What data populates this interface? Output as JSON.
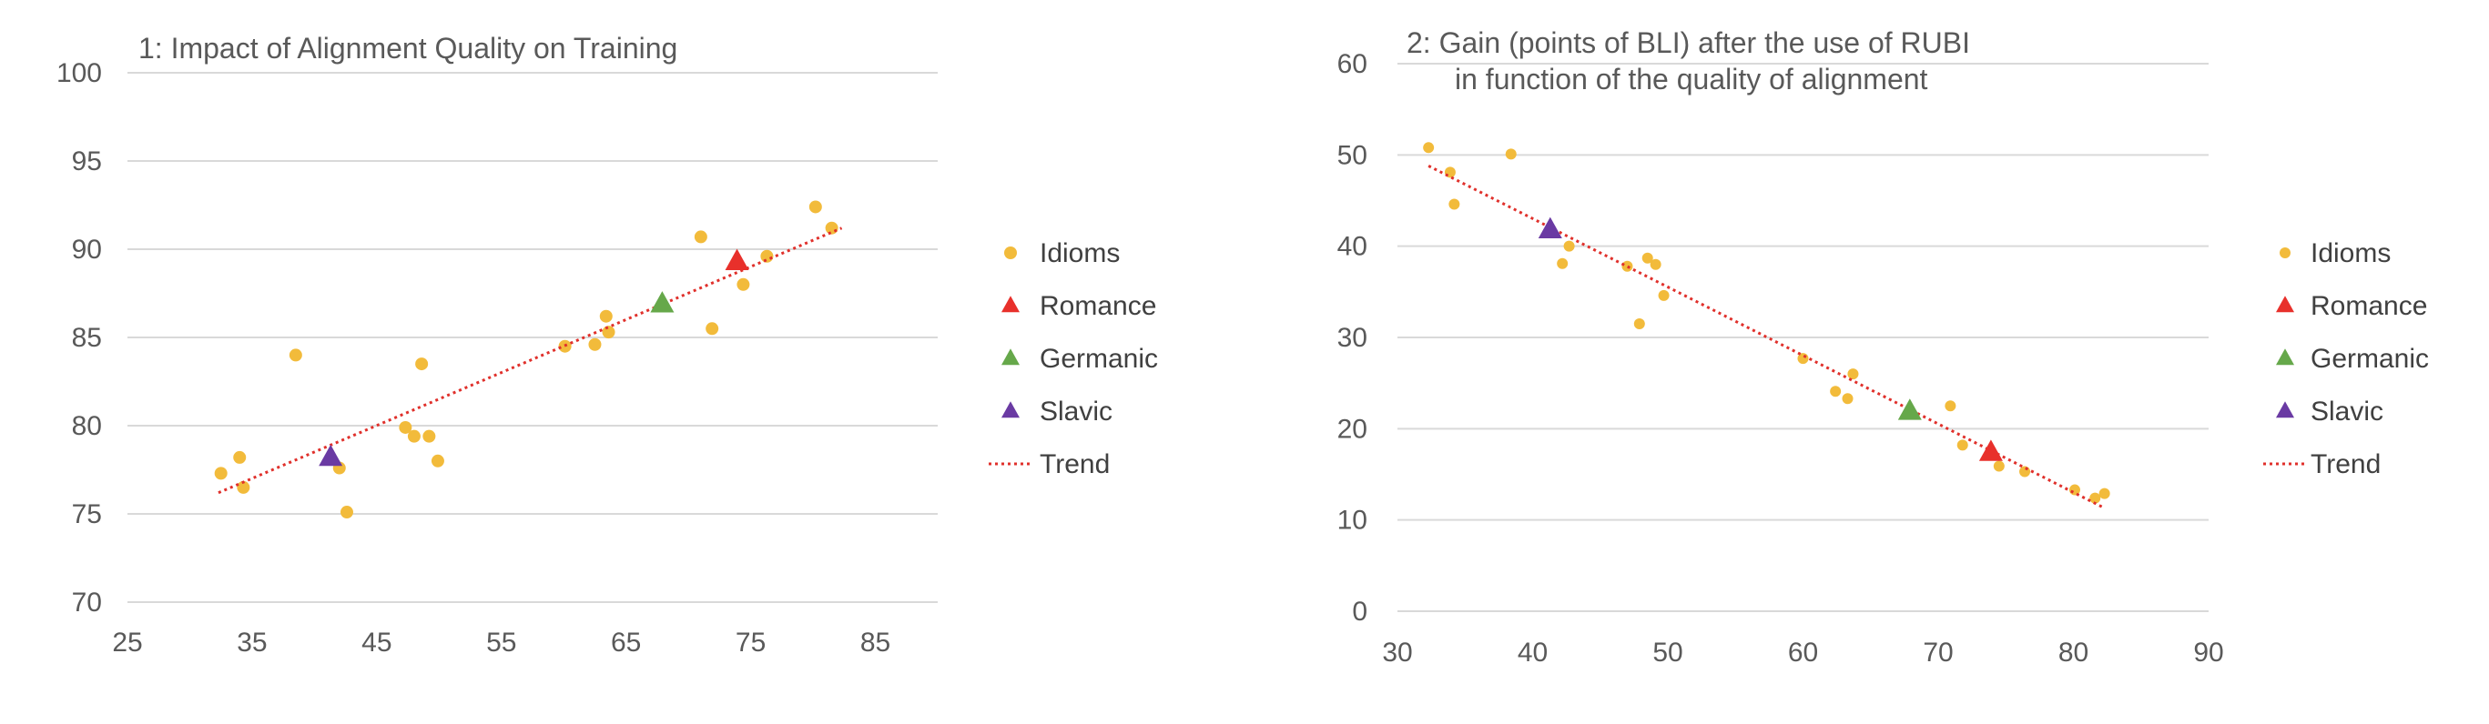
{
  "chart_data": [
    {
      "type": "scatter",
      "title": "1: Impact of Alignment Quality on Training",
      "subtitle": "",
      "xlim": [
        25,
        90
      ],
      "ylim": [
        70,
        100
      ],
      "x_ticks": [
        25,
        35,
        45,
        55,
        65,
        75,
        85
      ],
      "y_ticks": [
        70,
        75,
        80,
        85,
        90,
        95,
        100
      ],
      "grid": true,
      "legend_position": "right",
      "series": [
        {
          "name": "Idioms",
          "marker": "circle",
          "color": "#f2bb3b",
          "points": [
            [
              32.5,
              77.3
            ],
            [
              34.0,
              78.2
            ],
            [
              34.3,
              76.5
            ],
            [
              38.5,
              84.0
            ],
            [
              42.0,
              77.6
            ],
            [
              42.6,
              75.1
            ],
            [
              47.3,
              79.9
            ],
            [
              48.0,
              79.4
            ],
            [
              48.6,
              83.5
            ],
            [
              49.2,
              79.4
            ],
            [
              49.9,
              78.0
            ],
            [
              60.1,
              84.5
            ],
            [
              62.5,
              84.6
            ],
            [
              63.4,
              86.2
            ],
            [
              63.6,
              85.3
            ],
            [
              71.0,
              90.7
            ],
            [
              71.9,
              85.5
            ],
            [
              74.4,
              88.0
            ],
            [
              76.3,
              89.6
            ],
            [
              80.2,
              92.4
            ],
            [
              81.5,
              91.2
            ]
          ]
        },
        {
          "name": "Romance",
          "marker": "triangle",
          "color": "#e8302b",
          "points": [
            [
              73.9,
              89.3
            ]
          ]
        },
        {
          "name": "Germanic",
          "marker": "triangle",
          "color": "#66a84a",
          "points": [
            [
              67.9,
              86.9
            ]
          ]
        },
        {
          "name": "Slavic",
          "marker": "triangle",
          "color": "#6a3aa3",
          "points": [
            [
              41.3,
              78.2
            ]
          ]
        },
        {
          "name": "Trend",
          "marker": "dotted-line",
          "color": "#e0302b",
          "points": [
            [
              32.3,
              76.2
            ],
            [
              82.3,
              91.2
            ]
          ]
        }
      ]
    },
    {
      "type": "scatter",
      "title": "2: Gain (points of BLI) after the use of RUBI",
      "subtitle": "in function of the quality of alignment",
      "xlim": [
        30,
        90
      ],
      "ylim": [
        0,
        60
      ],
      "x_ticks": [
        30,
        40,
        50,
        60,
        70,
        80,
        90
      ],
      "y_ticks": [
        0,
        10,
        20,
        30,
        40,
        50,
        60
      ],
      "grid": true,
      "legend_position": "right",
      "series": [
        {
          "name": "Idioms",
          "marker": "circle",
          "color": "#f2bb3b",
          "points": [
            [
              32.3,
              50.8
            ],
            [
              33.9,
              48.1
            ],
            [
              34.2,
              44.6
            ],
            [
              38.4,
              50.1
            ],
            [
              42.2,
              38.1
            ],
            [
              42.7,
              40.0
            ],
            [
              47.0,
              37.8
            ],
            [
              47.9,
              31.5
            ],
            [
              48.5,
              38.7
            ],
            [
              49.1,
              38.0
            ],
            [
              49.7,
              34.6
            ],
            [
              60.0,
              27.7
            ],
            [
              62.4,
              24.1
            ],
            [
              63.3,
              23.3
            ],
            [
              63.7,
              26.0
            ],
            [
              70.9,
              22.5
            ],
            [
              71.8,
              18.2
            ],
            [
              74.5,
              15.9
            ],
            [
              76.4,
              15.3
            ],
            [
              80.1,
              13.3
            ],
            [
              81.6,
              12.4
            ],
            [
              82.3,
              12.9
            ]
          ]
        },
        {
          "name": "Romance",
          "marker": "triangle",
          "color": "#e8302b",
          "points": [
            [
              73.9,
              17.4
            ]
          ]
        },
        {
          "name": "Germanic",
          "marker": "triangle",
          "color": "#66a84a",
          "points": [
            [
              67.9,
              21.9
            ]
          ]
        },
        {
          "name": "Slavic",
          "marker": "triangle",
          "color": "#6a3aa3",
          "points": [
            [
              41.3,
              41.8
            ]
          ]
        },
        {
          "name": "Trend",
          "marker": "dotted-line",
          "color": "#e0302b",
          "points": [
            [
              32.3,
              48.8
            ],
            [
              82.3,
              11.3
            ]
          ]
        }
      ]
    }
  ]
}
